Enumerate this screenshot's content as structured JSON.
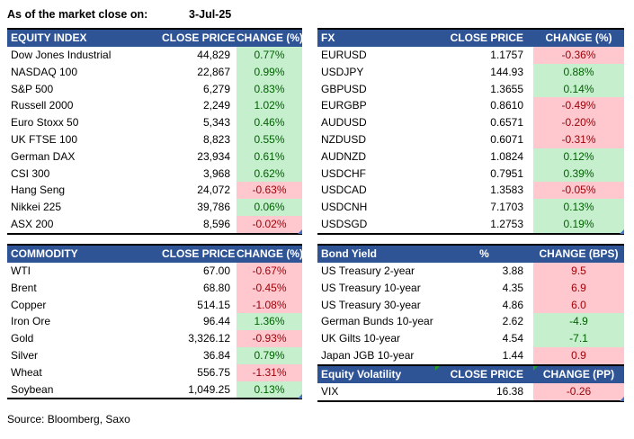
{
  "meta": {
    "as_of_label": "As of the market close on:",
    "as_of_date": "3-Jul-25",
    "source": "Source: Bloomberg, Saxo"
  },
  "colors": {
    "header_bg": "#2F5496",
    "good_bg": "#C6EFCE",
    "good_text": "#006100",
    "bad_bg": "#FFC7CE",
    "bad_text": "#9C0006",
    "corner_blue": "#4472C4",
    "marker_green": "#21A121"
  },
  "icons": {
    "table_corner_marker": "excel-range-corner",
    "error_marker": "excel-error-triangle"
  },
  "tables": {
    "equity_index": {
      "title": "EQUITY INDEX",
      "col2": "CLOSE PRICE",
      "col3": "CHANGE (%)",
      "rows": [
        {
          "label": "Dow Jones Industrial",
          "value": "44,829",
          "change": "0.77%",
          "tone": "good"
        },
        {
          "label": "NASDAQ 100",
          "value": "22,867",
          "change": "0.99%",
          "tone": "good"
        },
        {
          "label": "S&P 500",
          "value": "6,279",
          "change": "0.83%",
          "tone": "good"
        },
        {
          "label": "Russell 2000",
          "value": "2,249",
          "change": "1.02%",
          "tone": "good"
        },
        {
          "label": "Euro Stoxx 50",
          "value": "5,343",
          "change": "0.46%",
          "tone": "good"
        },
        {
          "label": "UK FTSE 100",
          "value": "8,823",
          "change": "0.55%",
          "tone": "good"
        },
        {
          "label": "German DAX",
          "value": "23,934",
          "change": "0.61%",
          "tone": "good"
        },
        {
          "label": "CSI 300",
          "value": "3,968",
          "change": "0.62%",
          "tone": "good"
        },
        {
          "label": "Hang Seng",
          "value": "24,072",
          "change": "-0.63%",
          "tone": "bad"
        },
        {
          "label": "Nikkei 225",
          "value": "39,786",
          "change": "0.06%",
          "tone": "good"
        },
        {
          "label": "ASX 200",
          "value": "8,596",
          "change": "-0.02%",
          "tone": "bad"
        }
      ]
    },
    "fx": {
      "title": "FX",
      "col2": "CLOSE PRICE",
      "col3": "CHANGE (%)",
      "rows": [
        {
          "label": "EURUSD",
          "value": "1.1757",
          "change": "-0.36%",
          "tone": "bad"
        },
        {
          "label": "USDJPY",
          "value": "144.93",
          "change": "0.88%",
          "tone": "good"
        },
        {
          "label": "GBPUSD",
          "value": "1.3655",
          "change": "0.14%",
          "tone": "good"
        },
        {
          "label": "EURGBP",
          "value": "0.8610",
          "change": "-0.49%",
          "tone": "bad"
        },
        {
          "label": "AUDUSD",
          "value": "0.6571",
          "change": "-0.20%",
          "tone": "bad"
        },
        {
          "label": "NZDUSD",
          "value": "0.6071",
          "change": "-0.31%",
          "tone": "bad"
        },
        {
          "label": "AUDNZD",
          "value": "1.0824",
          "change": "0.12%",
          "tone": "good"
        },
        {
          "label": "USDCHF",
          "value": "0.7951",
          "change": "0.39%",
          "tone": "good"
        },
        {
          "label": "USDCAD",
          "value": "1.3583",
          "change": "-0.05%",
          "tone": "bad"
        },
        {
          "label": "USDCNH",
          "value": "7.1703",
          "change": "0.13%",
          "tone": "good"
        },
        {
          "label": "USDSGD",
          "value": "1.2753",
          "change": "0.19%",
          "tone": "good"
        }
      ]
    },
    "commodity": {
      "title": "COMMODITY",
      "col2": "CLOSE PRICE",
      "col3": "CHANGE (%)",
      "rows": [
        {
          "label": "WTI",
          "value": "67.00",
          "change": "-0.67%",
          "tone": "bad"
        },
        {
          "label": "Brent",
          "value": "68.80",
          "change": "-0.45%",
          "tone": "bad"
        },
        {
          "label": "Copper",
          "value": "514.15",
          "change": "-1.08%",
          "tone": "bad"
        },
        {
          "label": "Iron Ore",
          "value": "96.44",
          "change": "1.36%",
          "tone": "good"
        },
        {
          "label": "Gold",
          "value": "3,326.12",
          "change": "-0.93%",
          "tone": "bad"
        },
        {
          "label": "Silver",
          "value": "36.84",
          "change": "0.79%",
          "tone": "good"
        },
        {
          "label": "Wheat",
          "value": "556.75",
          "change": "-1.31%",
          "tone": "bad"
        },
        {
          "label": "Soybean",
          "value": "1,049.25",
          "change": "0.13%",
          "tone": "good"
        }
      ]
    },
    "bond_yield": {
      "title": "Bond Yield",
      "col2": "%",
      "col3": "CHANGE (BPS)",
      "rows": [
        {
          "label": "US Treasury 2-year",
          "value": "3.88",
          "change": "9.5",
          "tone": "bad"
        },
        {
          "label": "US Treasury 10-year",
          "value": "4.35",
          "change": "6.9",
          "tone": "bad"
        },
        {
          "label": "US Treasury 30-year",
          "value": "4.86",
          "change": "6.0",
          "tone": "bad"
        },
        {
          "label": "German Bunds 10-year",
          "value": "2.62",
          "change": "-4.9",
          "tone": "good"
        },
        {
          "label": "UK Gilts 10-year",
          "value": "4.54",
          "change": "-7.1",
          "tone": "good"
        },
        {
          "label": "Japan JGB 10-year",
          "value": "1.44",
          "change": "0.9",
          "tone": "bad"
        }
      ]
    },
    "equity_volatility": {
      "title": "Equity Volatility",
      "col2": "CLOSE PRICE",
      "col3": "CHANGE (PP)",
      "rows": [
        {
          "label": "VIX",
          "value": "16.38",
          "change": "-0.26",
          "tone": "bad"
        }
      ]
    }
  }
}
